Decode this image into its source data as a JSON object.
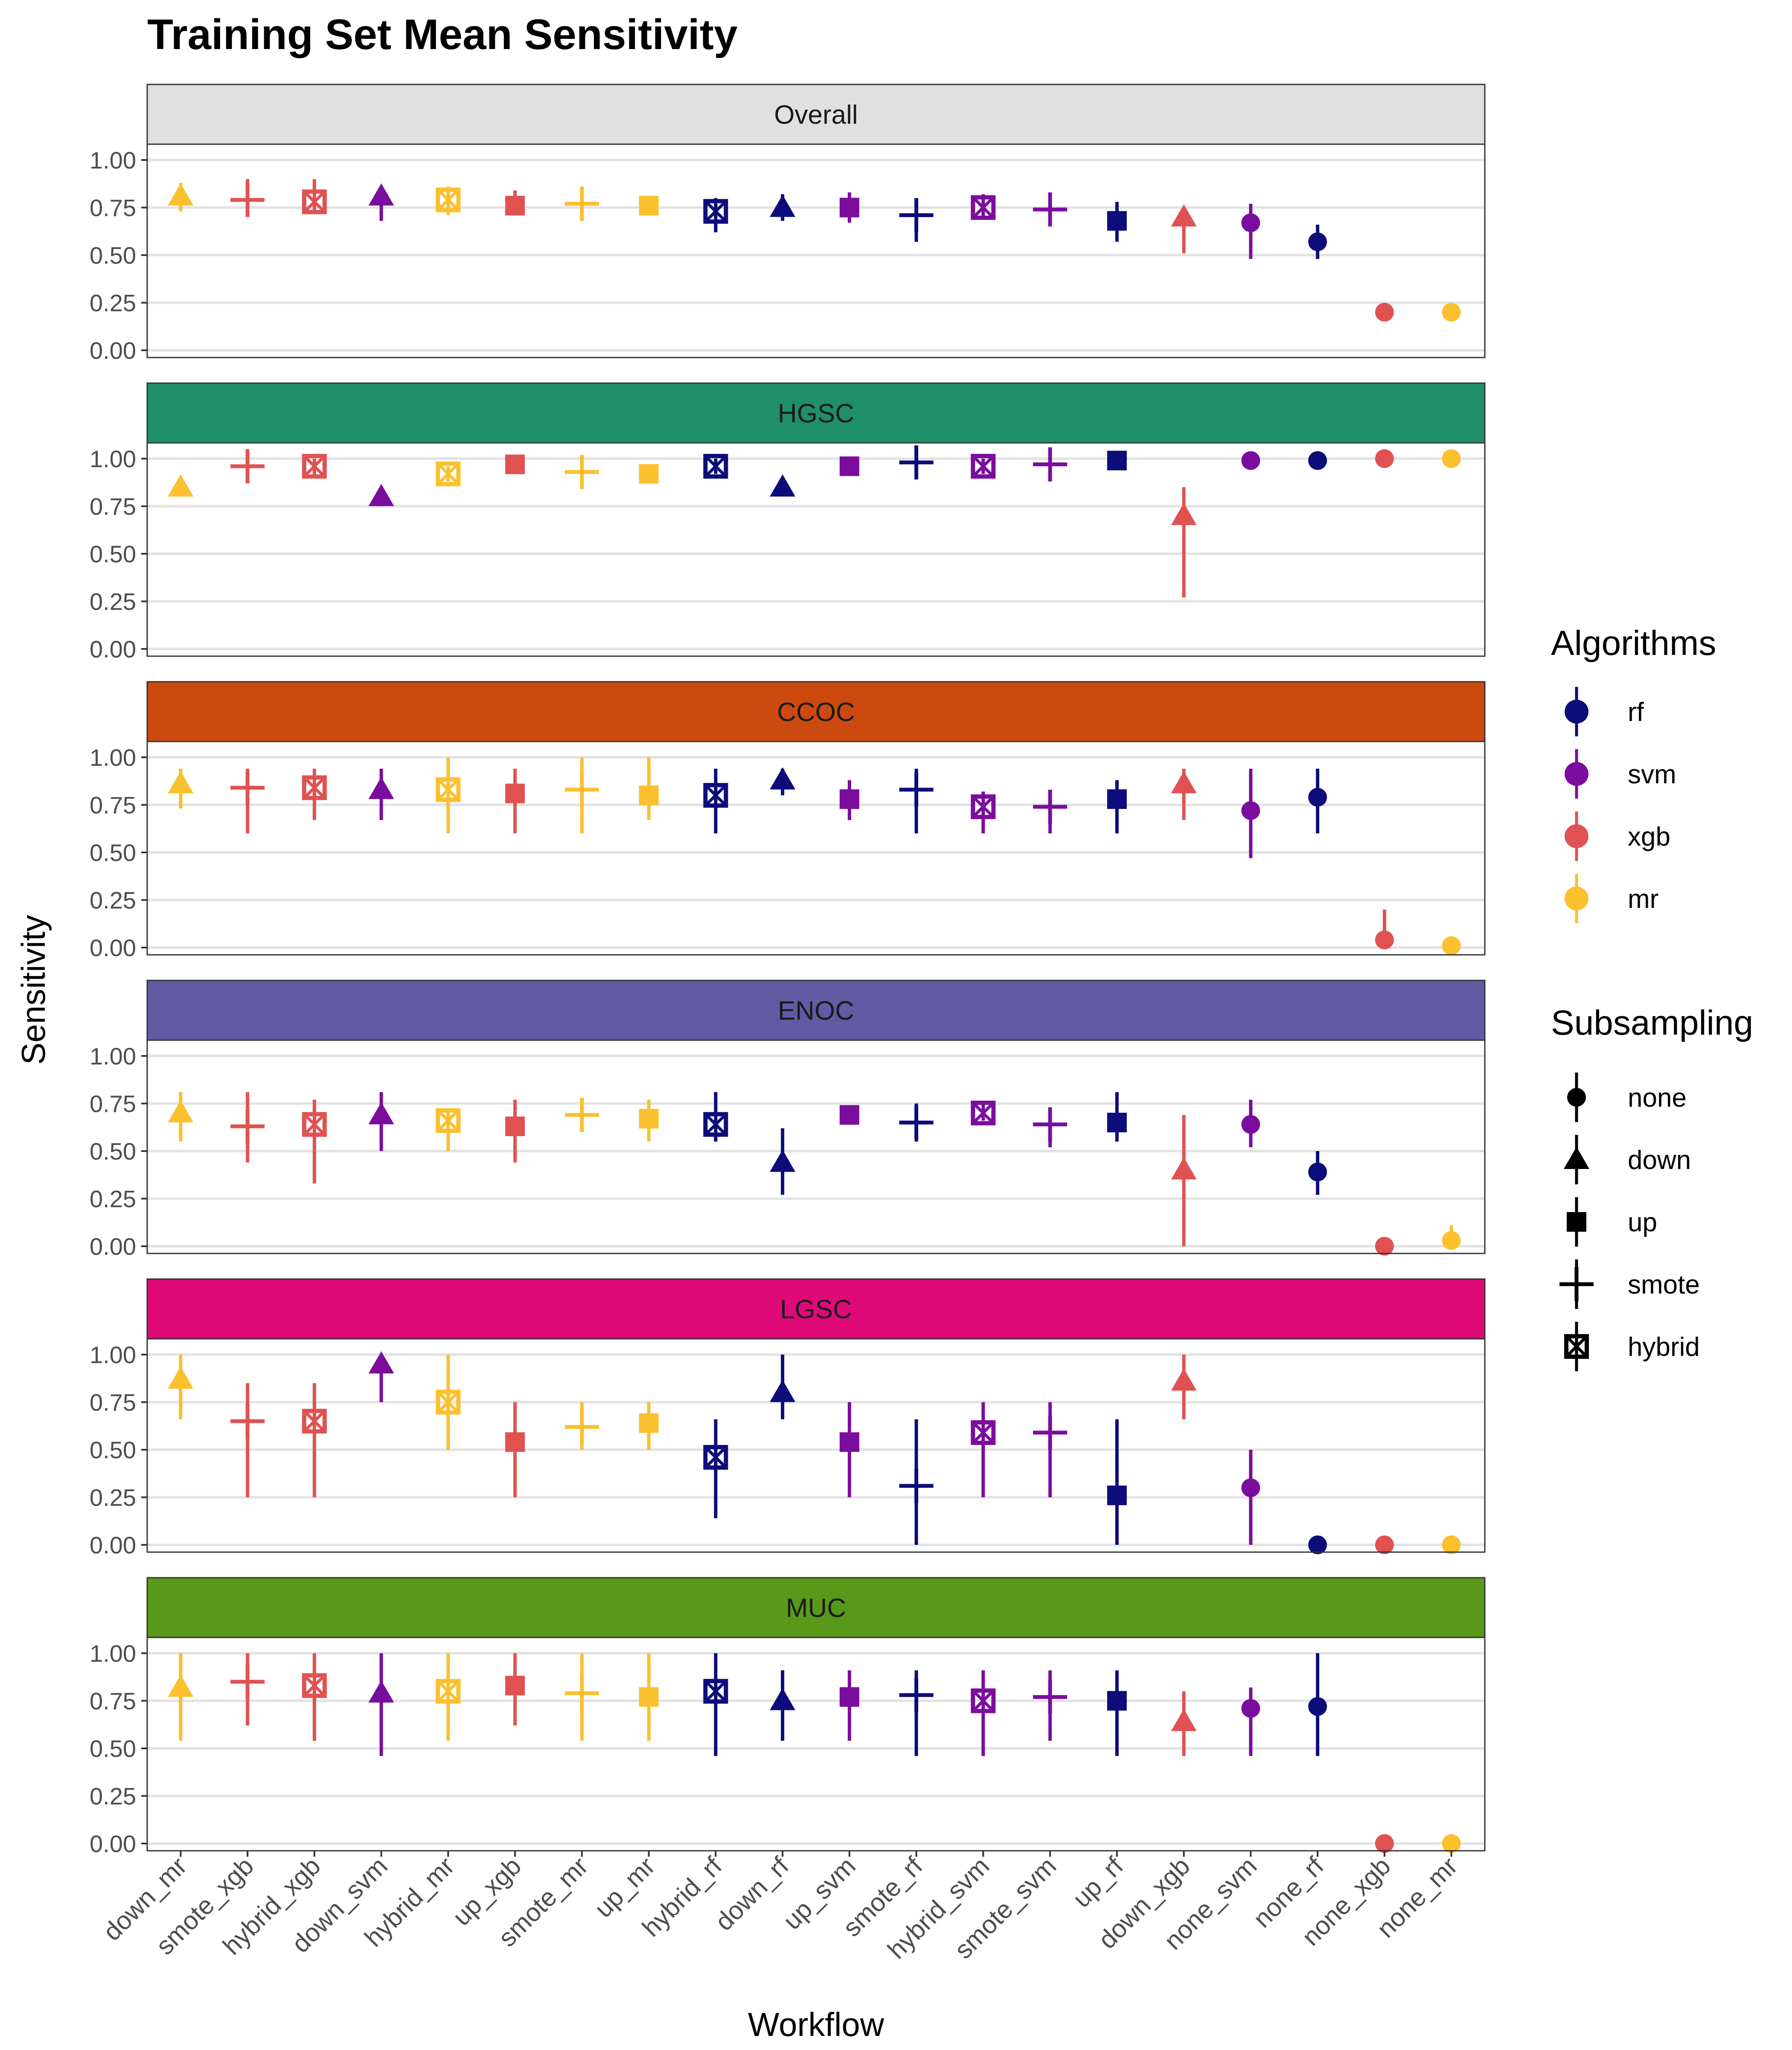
{
  "chart_data": {
    "type": "scatter",
    "title": "Training Set Mean Sensitivity",
    "xlabel": "Workflow",
    "ylabel": "Sensitivity",
    "ylim": [
      0,
      1.05
    ],
    "yticks": [
      "0.00",
      "0.25",
      "0.50",
      "0.75",
      "1.00"
    ],
    "grid": "horizontal",
    "legend_position": "right",
    "categories": [
      "down_mr",
      "smote_xgb",
      "hybrid_xgb",
      "down_svm",
      "hybrid_mr",
      "up_xgb",
      "smote_mr",
      "up_mr",
      "hybrid_rf",
      "down_rf",
      "up_svm",
      "smote_rf",
      "hybrid_svm",
      "smote_svm",
      "up_rf",
      "down_xgb",
      "none_svm",
      "none_rf",
      "none_xgb",
      "none_mr"
    ],
    "algorithms": {
      "title": "Algorithms",
      "items": [
        {
          "name": "rf",
          "color": "#0c0c7a"
        },
        {
          "name": "svm",
          "color": "#7b0d9e"
        },
        {
          "name": "xgb",
          "color": "#e05252"
        },
        {
          "name": "mr",
          "color": "#fbc02d"
        }
      ]
    },
    "subsampling": {
      "title": "Subsampling",
      "items": [
        {
          "name": "none",
          "shape": "circle"
        },
        {
          "name": "down",
          "shape": "triangle"
        },
        {
          "name": "up",
          "shape": "square"
        },
        {
          "name": "smote",
          "shape": "plus"
        },
        {
          "name": "hybrid",
          "shape": "boxcross"
        }
      ]
    },
    "panels": [
      {
        "label": "Overall",
        "strip_color": "#e0e0e0",
        "strip_text_color": "#1a1a1a",
        "mean": [
          0.81,
          0.79,
          0.78,
          0.81,
          0.79,
          0.76,
          0.77,
          0.76,
          0.73,
          0.75,
          0.75,
          0.71,
          0.75,
          0.74,
          0.68,
          0.7,
          0.67,
          0.57,
          0.2,
          0.2
        ],
        "lower": [
          0.73,
          0.71,
          0.72,
          0.68,
          0.71,
          0.72,
          0.7,
          0.73,
          0.62,
          0.68,
          0.67,
          0.57,
          0.69,
          0.66,
          0.57,
          0.51,
          0.48,
          0.48,
          null,
          null
        ],
        "upper": [
          0.88,
          0.9,
          0.9,
          0.86,
          0.86,
          0.84,
          0.85,
          0.79,
          0.8,
          0.82,
          0.83,
          0.75,
          0.82,
          0.82,
          0.78,
          0.74,
          0.77,
          0.66,
          null,
          null
        ]
      },
      {
        "label": "HGSC",
        "strip_color": "#1f8f6a",
        "strip_text_color": "#1a1a1a",
        "mean": [
          0.85,
          0.96,
          0.96,
          0.8,
          0.92,
          0.97,
          0.93,
          0.92,
          0.96,
          0.85,
          0.96,
          0.98,
          0.96,
          0.97,
          0.99,
          0.7,
          0.99,
          0.99,
          1.0,
          1.0
        ],
        "lower": [
          0.82,
          0.88,
          0.91,
          0.75,
          0.88,
          0.94,
          0.85,
          0.88,
          0.92,
          0.82,
          0.93,
          0.93,
          0.92,
          0.88,
          0.96,
          0.27,
          0.98,
          0.98,
          1.0,
          1.0
        ],
        "upper": [
          0.88,
          1.0,
          1.0,
          0.84,
          0.96,
          1.0,
          1.0,
          0.96,
          1.0,
          0.88,
          1.0,
          1.0,
          1.0,
          1.0,
          1.0,
          0.85,
          1.0,
          1.0,
          1.0,
          1.0
        ]
      },
      {
        "label": "CCOC",
        "strip_color": "#cc4a10",
        "strip_text_color": "#1a1a1a",
        "mean": [
          0.86,
          0.84,
          0.84,
          0.83,
          0.83,
          0.81,
          0.83,
          0.8,
          0.8,
          0.88,
          0.78,
          0.83,
          0.74,
          0.74,
          0.78,
          0.86,
          0.72,
          0.79,
          0.04,
          0.01
        ],
        "lower": [
          0.73,
          0.6,
          0.67,
          0.67,
          0.6,
          0.6,
          0.6,
          0.67,
          0.6,
          0.8,
          0.67,
          0.6,
          0.6,
          0.6,
          0.6,
          0.67,
          0.47,
          0.6,
          0.0,
          0.0
        ],
        "upper": [
          0.94,
          0.94,
          0.94,
          0.94,
          1.0,
          0.94,
          1.0,
          1.0,
          0.94,
          0.94,
          0.88,
          0.94,
          0.82,
          0.82,
          0.88,
          0.94,
          0.94,
          0.94,
          0.2,
          0.05
        ]
      },
      {
        "label": "ENOC",
        "strip_color": "#625aa3",
        "strip_text_color": "#1a1a1a",
        "mean": [
          0.7,
          0.63,
          0.64,
          0.69,
          0.66,
          0.63,
          0.69,
          0.67,
          0.64,
          0.44,
          0.69,
          0.65,
          0.7,
          0.64,
          0.65,
          0.4,
          0.64,
          0.39,
          0.0,
          0.03
        ],
        "lower": [
          0.55,
          0.44,
          0.33,
          0.5,
          0.5,
          0.44,
          0.62,
          0.55,
          0.55,
          0.27,
          0.66,
          0.55,
          0.66,
          0.52,
          0.55,
          0.0,
          0.52,
          0.27,
          0.0,
          0.0
        ],
        "upper": [
          0.81,
          0.81,
          0.77,
          0.81,
          0.72,
          0.77,
          0.77,
          0.77,
          0.81,
          0.62,
          0.72,
          0.75,
          0.75,
          0.73,
          0.81,
          0.69,
          0.77,
          0.5,
          0.0,
          0.11
        ]
      },
      {
        "label": "LGSC",
        "strip_color": "#df0a78",
        "strip_text_color": "#1a1a1a",
        "mean": [
          0.87,
          0.65,
          0.65,
          0.95,
          0.75,
          0.54,
          0.62,
          0.64,
          0.46,
          0.8,
          0.54,
          0.31,
          0.59,
          0.59,
          0.26,
          0.86,
          0.3,
          0.0,
          0.0,
          0.0
        ],
        "lower": [
          0.66,
          0.25,
          0.25,
          0.75,
          0.5,
          0.25,
          0.5,
          0.5,
          0.14,
          0.66,
          0.25,
          0.0,
          0.25,
          0.25,
          0.0,
          0.66,
          0.0,
          0.0,
          0.0,
          0.0
        ],
        "upper": [
          1.0,
          0.85,
          0.85,
          1.0,
          1.0,
          0.75,
          0.75,
          0.75,
          0.66,
          1.0,
          0.75,
          0.66,
          0.75,
          0.75,
          0.66,
          1.0,
          0.5,
          0.0,
          0.0,
          0.0
        ]
      },
      {
        "label": "MUC",
        "strip_color": "#58991a",
        "strip_text_color": "#1a1a1a",
        "mean": [
          0.82,
          0.85,
          0.83,
          0.79,
          0.8,
          0.83,
          0.79,
          0.77,
          0.8,
          0.75,
          0.77,
          0.78,
          0.75,
          0.77,
          0.75,
          0.64,
          0.71,
          0.72,
          0.0,
          0.0
        ],
        "lower": [
          0.54,
          0.62,
          0.54,
          0.46,
          0.54,
          0.62,
          0.54,
          0.54,
          0.46,
          0.54,
          0.54,
          0.46,
          0.46,
          0.54,
          0.46,
          0.46,
          0.46,
          0.46,
          0.0,
          0.0
        ],
        "upper": [
          1.0,
          1.0,
          1.0,
          1.0,
          1.0,
          1.0,
          1.0,
          1.0,
          1.0,
          0.91,
          0.91,
          0.91,
          0.91,
          0.91,
          0.91,
          0.8,
          0.82,
          1.0,
          0.0,
          0.0
        ]
      }
    ]
  }
}
